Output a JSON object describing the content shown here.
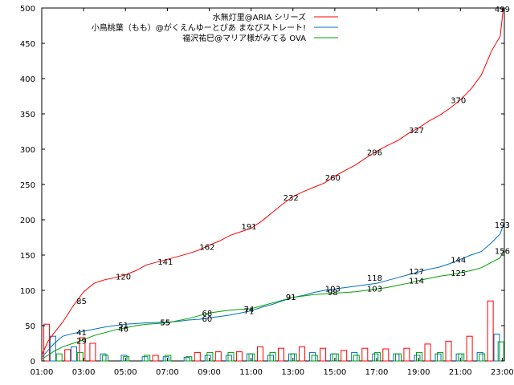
{
  "chart_data": {
    "type": "line",
    "ylim": [
      0,
      500
    ],
    "y_ticks": [
      "0",
      "50",
      "100",
      "150",
      "200",
      "250",
      "300",
      "350",
      "400",
      "450",
      "500"
    ],
    "x_ticks": [
      "01:00",
      "03:00",
      "05:00",
      "07:00",
      "09:00",
      "11:00",
      "13:00",
      "15:00",
      "17:00",
      "19:00",
      "21:00",
      "23:00"
    ],
    "x_range_hours": [
      1,
      23.1
    ],
    "grid": false,
    "legend_position": "top-right",
    "series": [
      {
        "name": "水無灯里@ARIA シリーズ",
        "color": "#ff0000",
        "points": [
          [
            1,
            8
          ],
          [
            1.3,
            28
          ],
          [
            1.6,
            40
          ],
          [
            2,
            55
          ],
          [
            2.5,
            78
          ],
          [
            3,
            98
          ],
          [
            3.5,
            110
          ],
          [
            4,
            115
          ],
          [
            4.5,
            118
          ],
          [
            5,
            122
          ],
          [
            5.5,
            128
          ],
          [
            6,
            136
          ],
          [
            6.5,
            140
          ],
          [
            7,
            144
          ],
          [
            7.5,
            148
          ],
          [
            8,
            152
          ],
          [
            8.5,
            157
          ],
          [
            9,
            164
          ],
          [
            9.5,
            170
          ],
          [
            10,
            178
          ],
          [
            10.5,
            183
          ],
          [
            11,
            188
          ],
          [
            11.5,
            198
          ],
          [
            12,
            210
          ],
          [
            12.5,
            222
          ],
          [
            13,
            233
          ],
          [
            13.5,
            240
          ],
          [
            14,
            246
          ],
          [
            14.5,
            252
          ],
          [
            15,
            262
          ],
          [
            15.5,
            270
          ],
          [
            16,
            278
          ],
          [
            16.5,
            288
          ],
          [
            17,
            297
          ],
          [
            17.5,
            305
          ],
          [
            18,
            312
          ],
          [
            18.5,
            322
          ],
          [
            19,
            330
          ],
          [
            19.5,
            340
          ],
          [
            20,
            348
          ],
          [
            20.5,
            358
          ],
          [
            21,
            370
          ],
          [
            21.5,
            385
          ],
          [
            22,
            405
          ],
          [
            22.5,
            440
          ],
          [
            22.9,
            460
          ],
          [
            23.05,
            499
          ]
        ],
        "labels": [
          [
            2.9,
            85
          ],
          [
            4.9,
            120
          ],
          [
            6.9,
            141
          ],
          [
            8.9,
            162
          ],
          [
            10.9,
            191
          ],
          [
            12.9,
            232
          ],
          [
            14.9,
            260
          ],
          [
            16.9,
            296
          ],
          [
            18.9,
            327
          ],
          [
            20.9,
            370
          ],
          [
            23,
            499
          ]
        ],
        "histogram": [
          [
            1.1,
            52
          ],
          [
            2.1,
            16
          ],
          [
            2.8,
            33
          ],
          [
            3.3,
            25
          ],
          [
            6.3,
            8
          ],
          [
            8.3,
            12
          ],
          [
            9.3,
            13
          ],
          [
            10.3,
            13
          ],
          [
            11.3,
            20
          ],
          [
            12.3,
            18
          ],
          [
            13.3,
            20
          ],
          [
            14.3,
            18
          ],
          [
            15.3,
            15
          ],
          [
            16.3,
            18
          ],
          [
            17.3,
            17
          ],
          [
            18.3,
            18
          ],
          [
            19.3,
            24
          ],
          [
            20.3,
            28
          ],
          [
            21.3,
            35
          ],
          [
            22.3,
            85
          ]
        ]
      },
      {
        "name": "小鳥桃葉（もも）@がくえんゆーとぴあ まなびストレート!",
        "color": "#0070c0",
        "points": [
          [
            1,
            5
          ],
          [
            1.3,
            15
          ],
          [
            1.6,
            25
          ],
          [
            2,
            35
          ],
          [
            2.5,
            39
          ],
          [
            3,
            42
          ],
          [
            3.5,
            45
          ],
          [
            4,
            48
          ],
          [
            4.5,
            50
          ],
          [
            5,
            52
          ],
          [
            5.5,
            53
          ],
          [
            6,
            54
          ],
          [
            7,
            55
          ],
          [
            7.5,
            56
          ],
          [
            8,
            58
          ],
          [
            8.5,
            59
          ],
          [
            9,
            61
          ],
          [
            9.5,
            63
          ],
          [
            10,
            65
          ],
          [
            10.5,
            68
          ],
          [
            11,
            71
          ],
          [
            11.5,
            76
          ],
          [
            12,
            80
          ],
          [
            12.5,
            85
          ],
          [
            13,
            90
          ],
          [
            13.5,
            93
          ],
          [
            14,
            97
          ],
          [
            14.5,
            100
          ],
          [
            15,
            102
          ],
          [
            15.5,
            104
          ],
          [
            16,
            106
          ],
          [
            16.5,
            108
          ],
          [
            17,
            110
          ],
          [
            17.5,
            114
          ],
          [
            18,
            118
          ],
          [
            18.5,
            122
          ],
          [
            19,
            126
          ],
          [
            19.5,
            130
          ],
          [
            20,
            133
          ],
          [
            20.5,
            138
          ],
          [
            21,
            144
          ],
          [
            21.5,
            150
          ],
          [
            22,
            155
          ],
          [
            22.5,
            168
          ],
          [
            22.9,
            180
          ],
          [
            23.05,
            193
          ]
        ],
        "labels": [
          [
            2.9,
            41
          ],
          [
            4.9,
            51
          ],
          [
            6.9,
            55
          ],
          [
            8.9,
            60
          ],
          [
            10.9,
            71
          ],
          [
            12.9,
            91
          ],
          [
            14.9,
            103
          ],
          [
            16.9,
            118
          ],
          [
            18.9,
            127
          ],
          [
            20.9,
            144
          ],
          [
            23,
            193
          ]
        ],
        "histogram": [
          [
            1.4,
            35
          ],
          [
            2.4,
            20
          ],
          [
            3.8,
            10
          ],
          [
            4.8,
            8
          ],
          [
            5.8,
            6
          ],
          [
            6.8,
            6
          ],
          [
            7.8,
            5
          ],
          [
            8.8,
            8
          ],
          [
            9.8,
            8
          ],
          [
            10.8,
            10
          ],
          [
            11.8,
            8
          ],
          [
            12.8,
            10
          ],
          [
            13.8,
            12
          ],
          [
            14.8,
            10
          ],
          [
            15.8,
            12
          ],
          [
            16.8,
            10
          ],
          [
            17.8,
            10
          ],
          [
            18.8,
            8
          ],
          [
            19.8,
            10
          ],
          [
            20.8,
            10
          ],
          [
            21.8,
            12
          ],
          [
            22.6,
            38
          ]
        ]
      },
      {
        "name": "福沢祐巳@マリア様がみてる OVA",
        "color": "#00a000",
        "points": [
          [
            1,
            3
          ],
          [
            1.3,
            8
          ],
          [
            1.6,
            14
          ],
          [
            2,
            20
          ],
          [
            2.5,
            25
          ],
          [
            3,
            30
          ],
          [
            3.5,
            36
          ],
          [
            4,
            40
          ],
          [
            4.5,
            44
          ],
          [
            5,
            47
          ],
          [
            5.5,
            50
          ],
          [
            6,
            52
          ],
          [
            7,
            54
          ],
          [
            7.5,
            57
          ],
          [
            8,
            60
          ],
          [
            8.5,
            64
          ],
          [
            9,
            68
          ],
          [
            9.5,
            70
          ],
          [
            10,
            72
          ],
          [
            10.5,
            73
          ],
          [
            11,
            74
          ],
          [
            11.5,
            78
          ],
          [
            12,
            82
          ],
          [
            12.5,
            86
          ],
          [
            13,
            90
          ],
          [
            13.5,
            92
          ],
          [
            14,
            94
          ],
          [
            14.5,
            95
          ],
          [
            15,
            96
          ],
          [
            15.5,
            97
          ],
          [
            16,
            98
          ],
          [
            16.5,
            100
          ],
          [
            17,
            102
          ],
          [
            17.5,
            104
          ],
          [
            18,
            107
          ],
          [
            18.5,
            110
          ],
          [
            19,
            114
          ],
          [
            19.5,
            117
          ],
          [
            20,
            120
          ],
          [
            20.5,
            122
          ],
          [
            21,
            125
          ],
          [
            21.5,
            128
          ],
          [
            22,
            132
          ],
          [
            22.5,
            140
          ],
          [
            22.9,
            146
          ],
          [
            23.05,
            156
          ]
        ],
        "labels": [
          [
            2.9,
            29
          ],
          [
            4.9,
            46
          ],
          [
            6.9,
            55
          ],
          [
            8.9,
            68
          ],
          [
            10.9,
            74
          ],
          [
            12.9,
            91
          ],
          [
            14.9,
            98
          ],
          [
            16.9,
            103
          ],
          [
            18.9,
            114
          ],
          [
            20.9,
            125
          ],
          [
            23,
            156
          ]
        ],
        "histogram": [
          [
            1.7,
            10
          ],
          [
            2.7,
            12
          ],
          [
            3.9,
            8
          ],
          [
            4.9,
            6
          ],
          [
            5.9,
            8
          ],
          [
            6.9,
            8
          ],
          [
            7.9,
            6
          ],
          [
            8.9,
            12
          ],
          [
            9.9,
            12
          ],
          [
            10.9,
            10
          ],
          [
            11.9,
            12
          ],
          [
            12.9,
            10
          ],
          [
            13.9,
            8
          ],
          [
            14.9,
            10
          ],
          [
            15.9,
            8
          ],
          [
            16.9,
            12
          ],
          [
            17.9,
            10
          ],
          [
            18.9,
            12
          ],
          [
            19.9,
            12
          ],
          [
            20.9,
            10
          ],
          [
            21.9,
            10
          ],
          [
            22.8,
            27
          ]
        ]
      }
    ]
  }
}
